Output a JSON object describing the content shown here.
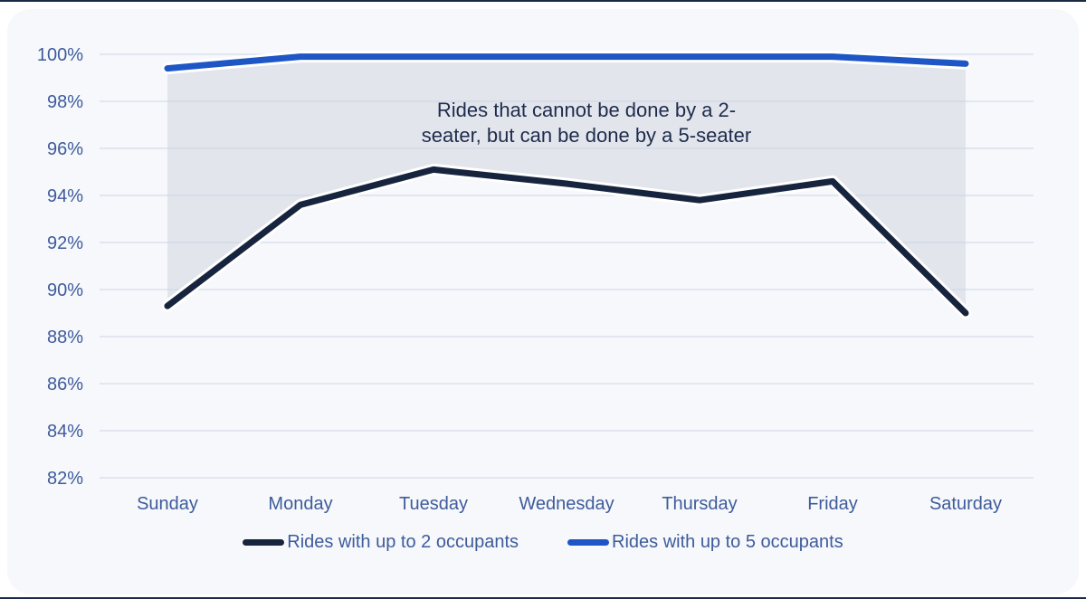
{
  "window": {
    "edge_color": "#1b2a47",
    "card_background": "#f6f8fb",
    "page_background": "#ffffff"
  },
  "chart_data": {
    "type": "line",
    "title": "",
    "categories": [
      "Sunday",
      "Monday",
      "Tuesday",
      "Wednesday",
      "Thursday",
      "Friday",
      "Saturday"
    ],
    "series": [
      {
        "name": "Rides with up to 2 occupants",
        "color": "#17243e",
        "values": [
          89.3,
          93.6,
          95.1,
          94.5,
          93.8,
          94.6,
          89.0
        ]
      },
      {
        "name": "Rides with up to 5 occupants",
        "color": "#1e56c5",
        "values": [
          99.4,
          99.9,
          99.9,
          99.9,
          99.9,
          99.9,
          99.6
        ]
      }
    ],
    "area_between_series": [
      1,
      0
    ],
    "area_color": "#e2e5ec",
    "annotation": {
      "line1": "Rides that cannot be done by a 2-",
      "line2": "seater, but can be done by a 5-seater"
    },
    "y_ticks": [
      100,
      98,
      96,
      94,
      92,
      90,
      88,
      86,
      84,
      82
    ],
    "y_tick_suffix": "%",
    "ylim": [
      82,
      100
    ],
    "grid": true,
    "grid_color": "#ccd4e6",
    "axis_text_color": "#3e5b9c",
    "line_casing_color": "#ffffff",
    "legend_position": "bottom"
  }
}
